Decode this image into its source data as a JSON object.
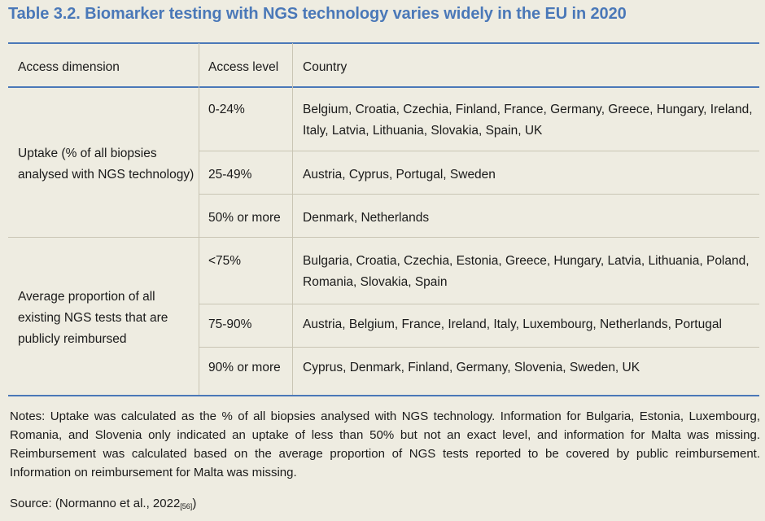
{
  "title": "Table 3.2. Biomarker testing with NGS technology varies widely in the EU in 2020",
  "table": {
    "headers": [
      "Access dimension",
      "Access level",
      "Country"
    ],
    "groups": [
      {
        "dimension": [
          "Uptake (% of all biopsies",
          "analysed with NGS technology)"
        ],
        "rows": [
          {
            "level": "0-24%",
            "countries": [
              "Belgium, Croatia, Czechia, Finland, France, Germany, Greece, Hungary, Ireland,",
              "Italy, Latvia, Lithuania, Slovakia, Spain, UK"
            ]
          },
          {
            "level": "25-49%",
            "countries": [
              "Austria, Cyprus, Portugal, Sweden"
            ]
          },
          {
            "level": "50% or more",
            "countries": [
              "Denmark, Netherlands"
            ]
          }
        ]
      },
      {
        "dimension": [
          "Average proportion of all",
          "existing NGS tests that are",
          "publicly reimbursed"
        ],
        "rows": [
          {
            "level": "<75%",
            "countries": [
              "Bulgaria, Croatia, Czechia, Estonia, Greece, Hungary, Latvia, Lithuania, Poland,",
              "Romania, Slovakia, Spain"
            ]
          },
          {
            "level": "75-90%",
            "countries": [
              "Austria, Belgium, France, Ireland, Italy, Luxembourg, Netherlands, Portugal"
            ]
          },
          {
            "level": "90% or more",
            "countries": [
              "Cyprus, Denmark, Finland, Germany, Slovenia, Sweden, UK"
            ]
          }
        ]
      }
    ]
  },
  "notes": "Notes: Uptake was calculated as the % of all biopsies analysed with NGS technology. Information for Bulgaria, Estonia, Luxembourg, Romania, and Slovenia only indicated an uptake of less than 50% but not an exact level, and information for Malta was missing. Reimbursement was calculated based on the average proportion of NGS tests reported to be covered by public reimbursement. Information on reimbursement for Malta was missing.",
  "source": {
    "text": "Source: (Normanno et al., 2022",
    "ref": "[56]",
    "close": ")"
  }
}
